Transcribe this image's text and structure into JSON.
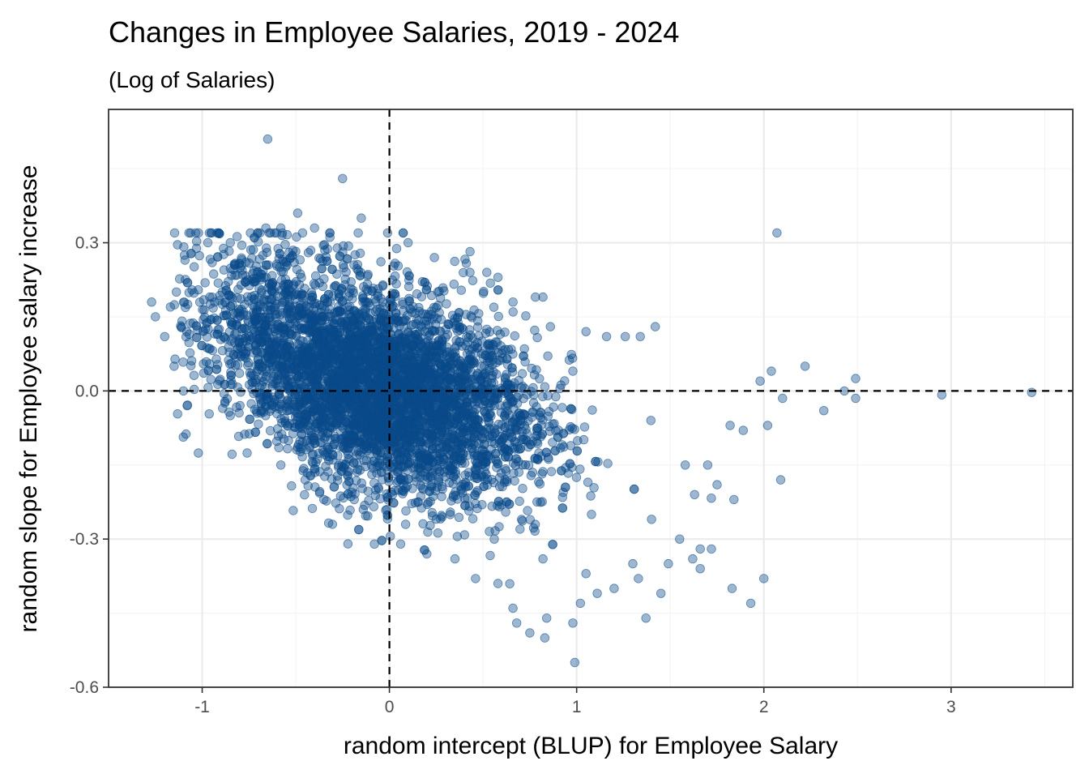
{
  "chart_data": {
    "type": "scatter",
    "title": "Changes in Employee Salaries, 2019 - 2024",
    "subtitle": "(Log of Salaries)",
    "xlabel": "random intercept (BLUP) for Employee Salary",
    "ylabel": "random slope for Employee salary increase",
    "xlim": [
      -1.5,
      3.65
    ],
    "ylim": [
      -0.6,
      0.57
    ],
    "x_ticks": [
      -1,
      0,
      1,
      2,
      3
    ],
    "x_tick_labels": [
      "-1",
      "0",
      "1",
      "2",
      "3"
    ],
    "y_ticks": [
      -0.6,
      -0.3,
      0.0,
      0.3
    ],
    "y_tick_labels": [
      "-0.6",
      "-0.3",
      "0.0",
      "0.3"
    ],
    "grid": true,
    "reference_lines": {
      "x": 0,
      "y": 0,
      "style": "dashed"
    },
    "point_color": "#0a4a8a",
    "point_alpha": 0.4,
    "point_count_note": "dense cloud of thousands of points; sampled outliers listed",
    "dense_cloud": {
      "x_range": [
        -1.2,
        1.7
      ],
      "description_shape": "negatively sloped ellipse centered near (0, 0)",
      "center": [
        0.0,
        0.0
      ],
      "slope": -0.1
    },
    "points": [
      [
        -0.65,
        0.51
      ],
      [
        -0.25,
        0.43
      ],
      [
        2.07,
        0.32
      ],
      [
        -1.27,
        0.18
      ],
      [
        -1.25,
        0.15
      ],
      [
        3.43,
        -0.003
      ],
      [
        2.95,
        -0.008
      ],
      [
        2.49,
        0.025
      ],
      [
        2.49,
        -0.015
      ],
      [
        2.43,
        0.0
      ],
      [
        2.32,
        -0.04
      ],
      [
        2.22,
        0.05
      ],
      [
        2.1,
        -0.015
      ],
      [
        2.09,
        -0.18
      ],
      [
        2.04,
        0.04
      ],
      [
        1.98,
        0.02
      ],
      [
        2.02,
        -0.07
      ],
      [
        1.93,
        -0.43
      ],
      [
        2.0,
        -0.38
      ],
      [
        1.83,
        -0.4
      ],
      [
        1.84,
        -0.22
      ],
      [
        1.82,
        -0.07
      ],
      [
        1.89,
        -0.08
      ],
      [
        1.72,
        -0.32
      ],
      [
        1.75,
        -0.19
      ],
      [
        1.7,
        -0.15
      ],
      [
        1.66,
        -0.32
      ],
      [
        1.66,
        -0.36
      ],
      [
        1.62,
        -0.34
      ],
      [
        1.63,
        -0.21
      ],
      [
        1.58,
        -0.15
      ],
      [
        1.55,
        -0.3
      ],
      [
        1.49,
        -0.35
      ],
      [
        1.45,
        -0.41
      ],
      [
        1.37,
        -0.46
      ],
      [
        1.33,
        -0.38
      ],
      [
        1.4,
        -0.26
      ],
      [
        1.42,
        0.13
      ],
      [
        1.34,
        0.11
      ],
      [
        1.26,
        0.11
      ],
      [
        1.16,
        0.11
      ],
      [
        1.05,
        0.12
      ],
      [
        0.98,
        0.04
      ],
      [
        0.86,
        0.13
      ],
      [
        0.82,
        0.19
      ],
      [
        0.78,
        0.19
      ],
      [
        0.66,
        0.18
      ],
      [
        0.58,
        0.23
      ],
      [
        0.52,
        0.24
      ],
      [
        0.43,
        0.24
      ],
      [
        0.24,
        0.27
      ],
      [
        0.1,
        0.3
      ],
      [
        -0.15,
        0.35
      ],
      [
        -0.49,
        0.36
      ],
      [
        -0.4,
        0.33
      ],
      [
        -0.58,
        0.33
      ],
      [
        -0.66,
        0.33
      ],
      [
        -0.85,
        0.3
      ],
      [
        -0.97,
        0.3
      ],
      [
        -1.02,
        0.32
      ],
      [
        -1.17,
        0.17
      ],
      [
        -1.2,
        0.11
      ],
      [
        -1.15,
        0.05
      ],
      [
        -1.1,
        0.0
      ],
      [
        -1.08,
        -0.03
      ],
      [
        -0.85,
        -0.05
      ],
      [
        -0.58,
        -0.15
      ],
      [
        -0.45,
        -0.18
      ],
      [
        -0.35,
        -0.22
      ],
      [
        -0.14,
        -0.24
      ],
      [
        -0.08,
        -0.31
      ],
      [
        0.06,
        -0.31
      ],
      [
        0.2,
        -0.33
      ],
      [
        0.35,
        -0.34
      ],
      [
        0.46,
        -0.38
      ],
      [
        0.58,
        -0.39
      ],
      [
        0.66,
        -0.44
      ],
      [
        0.68,
        -0.47
      ],
      [
        0.75,
        -0.49
      ],
      [
        0.83,
        -0.5
      ],
      [
        0.84,
        -0.46
      ],
      [
        0.98,
        -0.47
      ],
      [
        0.99,
        -0.55
      ],
      [
        1.02,
        -0.43
      ],
      [
        1.11,
        -0.41
      ],
      [
        1.2,
        -0.4
      ],
      [
        1.3,
        -0.35
      ],
      [
        0.56,
        -0.3
      ],
      [
        0.82,
        -0.34
      ],
      [
        1.05,
        -0.37
      ]
    ]
  }
}
